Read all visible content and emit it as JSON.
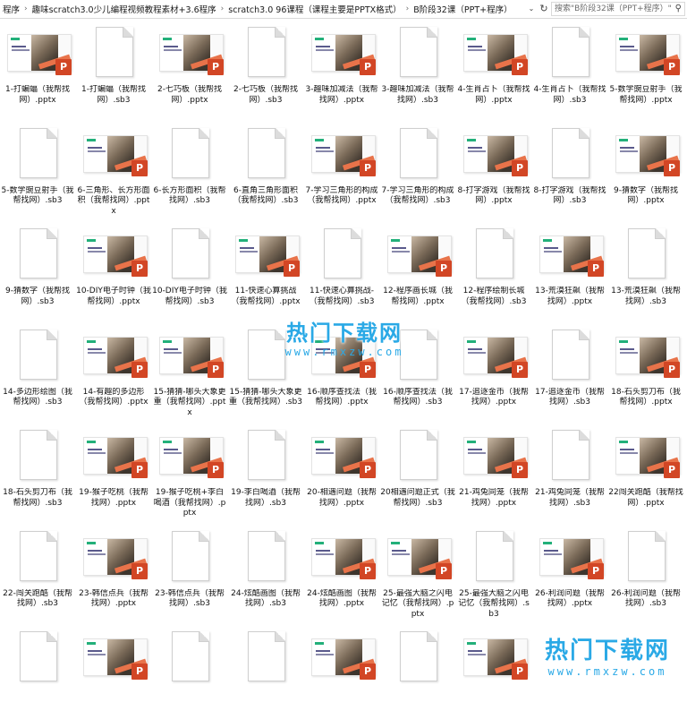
{
  "address_bar": {
    "crumbs": [
      "程序",
      "趣味scratch3.0少儿编程视频教程素材+3.6程序",
      "scratch3.0 96课程（课程主要是PPTX格式）",
      "B阶段32课（PPT+程序）"
    ],
    "separator": "›",
    "dropdown_glyph": "⌄",
    "refresh_glyph": "↻",
    "search_placeholder": "搜索\"B阶段32课（PPT+程序）\"",
    "search_glyph": "⚲"
  },
  "files": [
    {
      "name": "1-打蝙蝠（我帮找网）.pptx",
      "type": "pptx"
    },
    {
      "name": "1-打蝙蝠（我帮找网）.sb3",
      "type": "sb3"
    },
    {
      "name": "2-七巧板（我帮找网）.pptx",
      "type": "pptx"
    },
    {
      "name": "2-七巧板（我帮找网）.sb3",
      "type": "sb3"
    },
    {
      "name": "3-趣味加减法（我帮找网）.pptx",
      "type": "pptx"
    },
    {
      "name": "3-趣味加减法（我帮找网）.sb3",
      "type": "sb3"
    },
    {
      "name": "4-生肖占卜（我帮找网）.pptx",
      "type": "pptx"
    },
    {
      "name": "4-生肖占卜（我帮找网）.sb3",
      "type": "sb3"
    },
    {
      "name": "5-数学豌豆射手（我帮找网）.pptx",
      "type": "pptx"
    },
    {
      "name": "5-数学豌豆射手（我帮找网）.sb3",
      "type": "sb3"
    },
    {
      "name": "6-三角形、长方形面积（我帮找网）.pptx",
      "type": "pptx"
    },
    {
      "name": "6-长方形面积（我帮找网）.sb3",
      "type": "sb3"
    },
    {
      "name": "6-直角三角形面积（我帮找网）.sb3",
      "type": "sb3"
    },
    {
      "name": "7-学习三角形的构成（我帮找网）.pptx",
      "type": "pptx"
    },
    {
      "name": "7-学习三角形的构成（我帮找网）.sb3",
      "type": "sb3"
    },
    {
      "name": "8-打字游戏（我帮找网）.pptx",
      "type": "pptx"
    },
    {
      "name": "8-打字游戏（我帮找网）.sb3",
      "type": "sb3"
    },
    {
      "name": "9-猜数字（我帮找网）.pptx",
      "type": "pptx"
    },
    {
      "name": "9-猜数字（我帮找网）.sb3",
      "type": "sb3"
    },
    {
      "name": "10-DIY电子时钟（我帮找网）.pptx",
      "type": "pptx"
    },
    {
      "name": "10-DIY电子时钟（我帮找网）.sb3",
      "type": "sb3"
    },
    {
      "name": "11-快速心算挑战（我帮找网）.pptx",
      "type": "pptx"
    },
    {
      "name": "11-快速心算挑战-（我帮找网）.sb3",
      "type": "sb3"
    },
    {
      "name": "12-程序画长城（我帮找网）.pptx",
      "type": "pptx"
    },
    {
      "name": "12-程序绘制长城（我帮找网）.sb3",
      "type": "sb3"
    },
    {
      "name": "13-荒漠狂飙（我帮找网）.pptx",
      "type": "pptx"
    },
    {
      "name": "13-荒漠狂飙（我帮找网）.sb3",
      "type": "sb3"
    },
    {
      "name": "14-多边形绘图（我帮找网）.sb3",
      "type": "sb3"
    },
    {
      "name": "14-有趣的多边形（我帮找网）.pptx",
      "type": "pptx"
    },
    {
      "name": "15-猜猜-哪头大象更重（我帮找网）.pptx",
      "type": "pptx"
    },
    {
      "name": "15-猜猜-哪头大象更重（我帮找网）.sb3",
      "type": "sb3"
    },
    {
      "name": "16-顺序查找法（我帮找网）.pptx",
      "type": "pptx"
    },
    {
      "name": "16-顺序查找法（我帮找网）.sb3",
      "type": "sb3"
    },
    {
      "name": "17-追逐金币（我帮找网）.pptx",
      "type": "pptx"
    },
    {
      "name": "17-追逐金币（我帮找网）.sb3",
      "type": "sb3"
    },
    {
      "name": "18-石头剪刀布（我帮找网）.pptx",
      "type": "pptx"
    },
    {
      "name": "18-石头剪刀布（我帮找网）.sb3",
      "type": "sb3"
    },
    {
      "name": "19-猴子吃桃（我帮找网）.pptx",
      "type": "pptx"
    },
    {
      "name": "19-猴子吃桃+李白喝酒（我帮找网）.pptx",
      "type": "pptx"
    },
    {
      "name": "19-李白喝酒（我帮找网）.sb3",
      "type": "sb3"
    },
    {
      "name": "20-相遇问题（我帮找网）.pptx",
      "type": "pptx"
    },
    {
      "name": "20相遇问题正式（我帮找网）.sb3",
      "type": "sb3"
    },
    {
      "name": "21-鸡兔同笼（我帮找网）.pptx",
      "type": "pptx"
    },
    {
      "name": "21-鸡兔同笼（我帮找网）.sb3",
      "type": "sb3"
    },
    {
      "name": "22闯关跑酷（我帮找网）.pptx",
      "type": "pptx"
    },
    {
      "name": "22-闯关跑酷（我帮找网）.sb3",
      "type": "sb3"
    },
    {
      "name": "23-韩信点兵（我帮找网）.pptx",
      "type": "pptx"
    },
    {
      "name": "23-韩信点兵（我帮找网）.sb3",
      "type": "sb3"
    },
    {
      "name": "24-炫酷画图（我帮找网）.sb3",
      "type": "sb3"
    },
    {
      "name": "24-炫酷画图（我帮找网）.pptx",
      "type": "pptx"
    },
    {
      "name": "25-最强大脑之闪电记忆（我帮找网）.pptx",
      "type": "pptx"
    },
    {
      "name": "25-最强大脑之闪电记忆（我帮找网）.sb3",
      "type": "sb3"
    },
    {
      "name": "26-利润问题（我帮找网）.pptx",
      "type": "pptx"
    },
    {
      "name": "26-利润问题（我帮找网）.sb3",
      "type": "sb3"
    },
    {
      "name": "",
      "type": "sb3"
    },
    {
      "name": "",
      "type": "pptx"
    },
    {
      "name": "",
      "type": "sb3"
    },
    {
      "name": "",
      "type": "sb3"
    },
    {
      "name": "",
      "type": "pptx"
    },
    {
      "name": "",
      "type": "sb3"
    },
    {
      "name": "",
      "type": "pptx"
    }
  ],
  "pptx_badge": "P",
  "watermark": {
    "cn": "热门下载网",
    "en": "www.rmxzw.com"
  },
  "colors": {
    "ppt_badge": "#d24625",
    "watermark": "#2aa9e6",
    "slide_accent": "#e8734a"
  }
}
